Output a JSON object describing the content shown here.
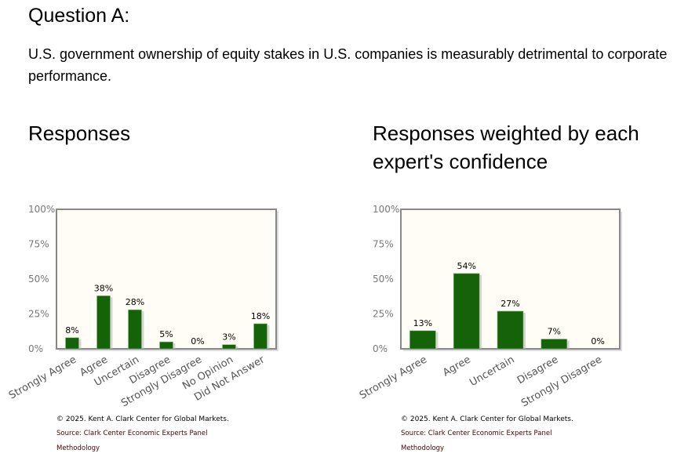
{
  "question": {
    "title": "Question A:",
    "text": "U.S. government ownership of equity stakes in U.S. companies is measurably detrimental to corporate performance."
  },
  "colors": {
    "bar": "#156308",
    "plot_bg": "#fffdf5",
    "frame": "#888888",
    "tick_text": "#777777"
  },
  "chart_data": [
    {
      "type": "bar",
      "title": "Responses",
      "categories": [
        "Strongly Agree",
        "Agree",
        "Uncertain",
        "Disagree",
        "Strongly Disagree",
        "No Opinion",
        "Did Not Answer"
      ],
      "values": [
        8,
        38,
        28,
        5,
        0,
        3,
        18
      ],
      "data_labels": [
        "8%",
        "38%",
        "28%",
        "5%",
        "0%",
        "3%",
        "18%"
      ],
      "yticks": [
        "0%",
        "25%",
        "50%",
        "75%",
        "100%"
      ],
      "ylim": [
        0,
        100
      ],
      "grid": false
    },
    {
      "type": "bar",
      "title": "Responses weighted by each expert's confidence",
      "categories": [
        "Strongly Agree",
        "Agree",
        "Uncertain",
        "Disagree",
        "Strongly Disagree"
      ],
      "values": [
        13,
        54,
        27,
        7,
        0
      ],
      "data_labels": [
        "13%",
        "54%",
        "27%",
        "7%",
        "0%"
      ],
      "yticks": [
        "0%",
        "25%",
        "50%",
        "75%",
        "100%"
      ],
      "ylim": [
        0,
        100
      ],
      "grid": false
    }
  ],
  "footer": {
    "copyright": "© 2025. Kent A. Clark Center for Global Markets.",
    "source": "Source: Clark Center Economic Experts Panel",
    "methodology": "Methodology"
  }
}
